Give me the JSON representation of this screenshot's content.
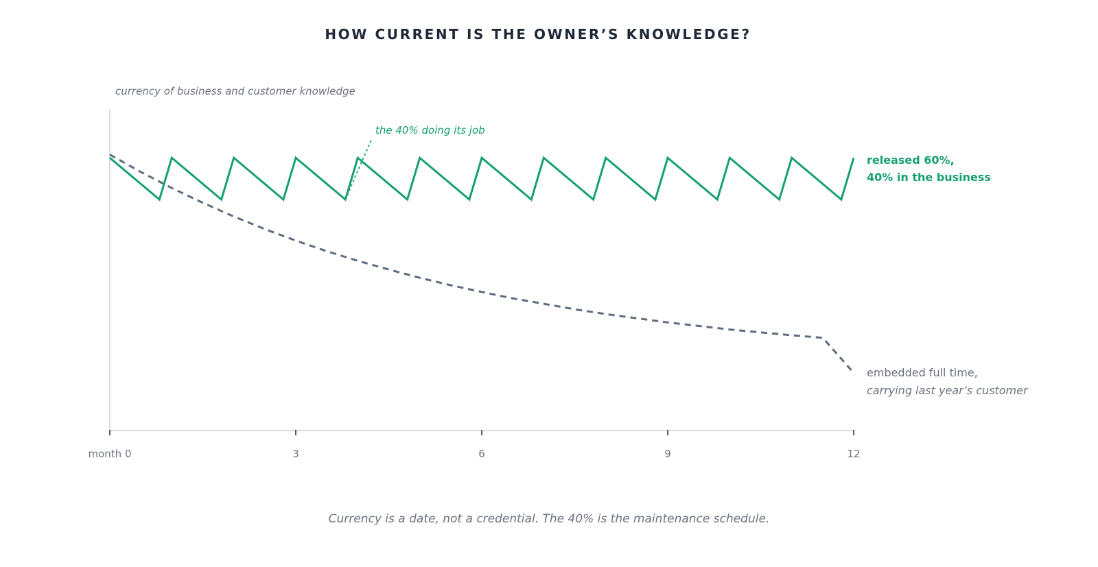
{
  "colors": {
    "released": "#16a070",
    "embedded": "#5f6b7e",
    "axis": "#d6dce8",
    "text": "#1f2937",
    "muted": "#6b7280"
  },
  "chart_data": {
    "type": "line",
    "title": "HOW CURRENT IS THE OWNER’S KNOWLEDGE?",
    "ylabel": "currency of business and customer knowledge",
    "xlabel": "",
    "xlim": [
      0,
      12
    ],
    "ylim": [
      0,
      100
    ],
    "x_ticks": [
      {
        "value": 0,
        "label": "month 0"
      },
      {
        "value": 3,
        "label": "3"
      },
      {
        "value": 6,
        "label": "6"
      },
      {
        "value": 9,
        "label": "9"
      },
      {
        "value": 12,
        "label": "12"
      }
    ],
    "grid": false,
    "legend": "none",
    "series": [
      {
        "label_lines": [
          "released 60%,",
          "40% in the business"
        ],
        "style": "solid",
        "x": [
          0,
          0.8,
          1,
          1.8,
          2,
          2.8,
          3,
          3.8,
          4,
          4.8,
          5,
          5.8,
          6,
          6.8,
          7,
          7.8,
          8,
          8.8,
          9,
          9.8,
          10,
          10.8,
          11,
          11.8,
          12
        ],
        "y": [
          85,
          72,
          85,
          72,
          85,
          72,
          85,
          72,
          85,
          72,
          85,
          72,
          85,
          72,
          85,
          72,
          85,
          72,
          85,
          72,
          85,
          72,
          85,
          72,
          85
        ]
      },
      {
        "label_lines": [
          "embedded full time,",
          "carrying last year’s customer"
        ],
        "style": "dashed",
        "x": [
          0,
          0.5,
          1,
          1.5,
          2,
          2.5,
          3,
          3.5,
          4,
          4.5,
          5,
          5.5,
          6,
          6.5,
          7,
          7.5,
          8,
          8.5,
          9,
          9.5,
          10,
          10.5,
          11,
          11.5,
          12
        ],
        "y": [
          86,
          80.6,
          75.6,
          71,
          66.7,
          62.8,
          59.2,
          55.9,
          52.9,
          50.2,
          47.6,
          45.3,
          43.2,
          41.2,
          39.5,
          37.8,
          36.3,
          35,
          33.7,
          32.6,
          31.5,
          30.6,
          29.7,
          28.9,
          18
        ]
      }
    ],
    "annotations": [
      {
        "text": "the 40% doing its job",
        "x": 3.8,
        "y": 72
      }
    ]
  },
  "caption": "Currency is a date, not a credential. The 40% is the maintenance schedule."
}
